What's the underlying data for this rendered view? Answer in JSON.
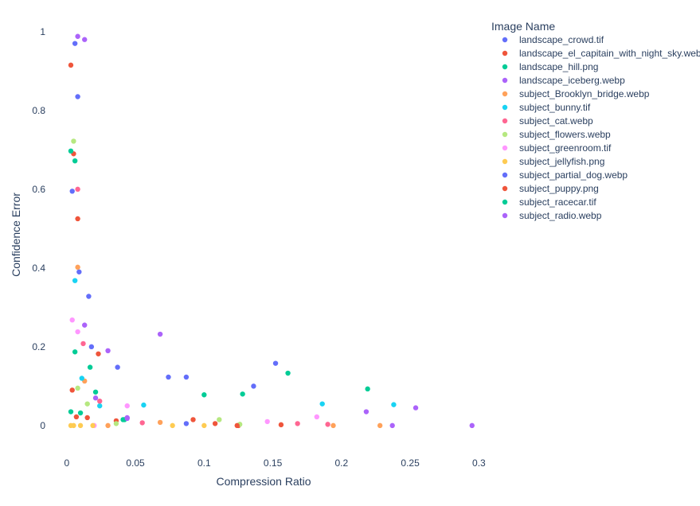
{
  "chart_data": {
    "type": "scatter",
    "xlabel": "Compression Ratio",
    "ylabel": "Confidence Error",
    "legend_title": "Image Name",
    "legend_position": "top-right",
    "grid": false,
    "xlim": [
      -0.008,
      0.305
    ],
    "ylim": [
      -0.075,
      1.04
    ],
    "x_ticks": [
      {
        "value": 0,
        "label": "0"
      },
      {
        "value": 0.05,
        "label": "0.05"
      },
      {
        "value": 0.1,
        "label": "0.1"
      },
      {
        "value": 0.15,
        "label": "0.15"
      },
      {
        "value": 0.2,
        "label": "0.2"
      },
      {
        "value": 0.25,
        "label": "0.25"
      },
      {
        "value": 0.3,
        "label": "0.3"
      }
    ],
    "y_ticks": [
      {
        "value": 0,
        "label": "0"
      },
      {
        "value": 0.2,
        "label": "0.2"
      },
      {
        "value": 0.4,
        "label": "0.4"
      },
      {
        "value": 0.6,
        "label": "0.6"
      },
      {
        "value": 0.8,
        "label": "0.8"
      },
      {
        "value": 1,
        "label": "1"
      }
    ],
    "series": [
      {
        "name": "landscape_crowd.tif",
        "color": "#636efa",
        "points": [
          [
            0.006,
            0.97
          ],
          [
            0.008,
            0.835
          ],
          [
            0.004,
            0.595
          ],
          [
            0.009,
            0.39
          ],
          [
            0.016,
            0.328
          ],
          [
            0.018,
            0.2
          ],
          [
            0.037,
            0.148
          ],
          [
            0.074,
            0.123
          ],
          [
            0.087,
            0.123
          ],
          [
            0.136,
            0.1
          ],
          [
            0.152,
            0.158
          ]
        ]
      },
      {
        "name": "landscape_el_capitain_with_night_sky.webp",
        "color": "#EF553B",
        "points": [
          [
            0.003,
            0.915
          ],
          [
            0.005,
            0.69
          ],
          [
            0.008,
            0.525
          ],
          [
            0.023,
            0.182
          ],
          [
            0.004,
            0.09
          ],
          [
            0.007,
            0.022
          ],
          [
            0.015,
            0.02
          ],
          [
            0.036,
            0.012
          ],
          [
            0.092,
            0.015
          ],
          [
            0.108,
            0.005
          ],
          [
            0.125,
            0.0
          ],
          [
            0.156,
            0.002
          ]
        ]
      },
      {
        "name": "landscape_hill.png",
        "color": "#00cc96",
        "points": [
          [
            0.003,
            0.697
          ],
          [
            0.006,
            0.672
          ],
          [
            0.006,
            0.187
          ],
          [
            0.017,
            0.148
          ],
          [
            0.021,
            0.085
          ],
          [
            0.003,
            0.035
          ],
          [
            0.01,
            0.032
          ],
          [
            0.042,
            0.015
          ],
          [
            0.1,
            0.078
          ],
          [
            0.128,
            0.08
          ],
          [
            0.161,
            0.133
          ],
          [
            0.219,
            0.093
          ]
        ]
      },
      {
        "name": "landscape_iceberg.webp",
        "color": "#ab63fa",
        "points": [
          [
            0.008,
            0.988
          ],
          [
            0.013,
            0.98
          ],
          [
            0.013,
            0.255
          ],
          [
            0.03,
            0.19
          ],
          [
            0.021,
            0.07
          ],
          [
            0.044,
            0.02
          ],
          [
            0.068,
            0.232
          ],
          [
            0.218,
            0.035
          ],
          [
            0.254,
            0.045
          ],
          [
            0.237,
            0.0
          ],
          [
            0.295,
            0.0
          ]
        ]
      },
      {
        "name": "subject_Brooklyn_bridge.webp",
        "color": "#FFA15A",
        "points": [
          [
            0.008,
            0.402
          ],
          [
            0.013,
            0.113
          ],
          [
            0.03,
            0.0
          ],
          [
            0.068,
            0.008
          ],
          [
            0.194,
            0.0
          ],
          [
            0.228,
            0.0
          ]
        ]
      },
      {
        "name": "subject_bunny.tif",
        "color": "#19d3f3",
        "points": [
          [
            0.006,
            0.368
          ],
          [
            0.011,
            0.12
          ],
          [
            0.024,
            0.05
          ],
          [
            0.056,
            0.052
          ],
          [
            0.186,
            0.055
          ],
          [
            0.238,
            0.053
          ]
        ]
      },
      {
        "name": "subject_cat.webp",
        "color": "#FF6692",
        "points": [
          [
            0.008,
            0.6
          ],
          [
            0.012,
            0.208
          ],
          [
            0.024,
            0.062
          ],
          [
            0.055,
            0.007
          ],
          [
            0.168,
            0.005
          ],
          [
            0.19,
            0.003
          ]
        ]
      },
      {
        "name": "subject_flowers.webp",
        "color": "#B6E880",
        "points": [
          [
            0.005,
            0.722
          ],
          [
            0.008,
            0.095
          ],
          [
            0.015,
            0.055
          ],
          [
            0.036,
            0.005
          ],
          [
            0.111,
            0.015
          ],
          [
            0.126,
            0.003
          ]
        ]
      },
      {
        "name": "subject_greenroom.tif",
        "color": "#FF97FF",
        "points": [
          [
            0.004,
            0.268
          ],
          [
            0.008,
            0.238
          ],
          [
            0.02,
            0.0
          ],
          [
            0.044,
            0.05
          ],
          [
            0.146,
            0.01
          ],
          [
            0.182,
            0.022
          ]
        ]
      },
      {
        "name": "subject_jellyfish.png",
        "color": "#FECB52",
        "points": [
          [
            0.003,
            0.0
          ],
          [
            0.005,
            0.0
          ],
          [
            0.01,
            0.0
          ],
          [
            0.019,
            0.0
          ],
          [
            0.077,
            0.0
          ],
          [
            0.1,
            0.0
          ]
        ]
      },
      {
        "name": "subject_partial_dog.webp",
        "color": "#636efa",
        "points": [
          [
            0.087,
            0.005
          ]
        ]
      },
      {
        "name": "subject_puppy.png",
        "color": "#EF553B",
        "points": [
          [
            0.124,
            0.0
          ]
        ]
      },
      {
        "name": "subject_racecar.tif",
        "color": "#00cc96",
        "points": [
          [
            0.041,
            0.015
          ]
        ]
      },
      {
        "name": "subject_radio.webp",
        "color": "#ab63fa",
        "points": [
          [
            0.044,
            0.018
          ]
        ]
      }
    ]
  }
}
